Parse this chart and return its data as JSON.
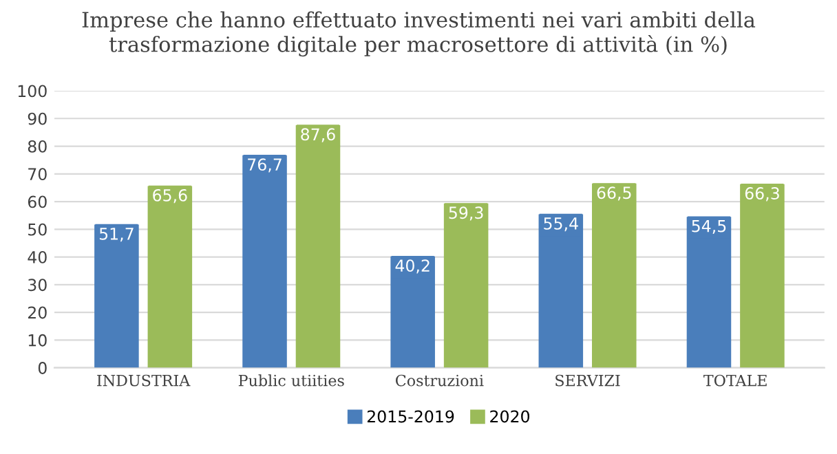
{
  "chart_data": {
    "type": "bar",
    "title": "Imprese che hanno effettuato investimenti nei vari ambiti della trasformazione digitale per macrosettore di attività (in %)",
    "categories": [
      "INDUSTRIA",
      "Public utiities",
      "Costruzioni",
      "SERVIZI",
      "TOTALE"
    ],
    "series": [
      {
        "name": "2015-2019",
        "color": "#4a7ebb",
        "values": [
          51.7,
          76.7,
          40.2,
          55.4,
          54.5
        ],
        "value_labels": [
          "51,7",
          "76,7",
          "40,2",
          "55,4",
          "54,5"
        ]
      },
      {
        "name": "2020",
        "color": "#9bbb59",
        "values": [
          65.6,
          87.6,
          59.3,
          66.5,
          66.3
        ],
        "value_labels": [
          "65,6",
          "87,6",
          "59,3",
          "66,5",
          "66,3"
        ]
      }
    ],
    "ylim": [
      0,
      100
    ],
    "yticks": [
      0,
      10,
      20,
      30,
      40,
      50,
      60,
      70,
      80,
      90,
      100
    ],
    "grid": "y",
    "legend": "bottom"
  }
}
